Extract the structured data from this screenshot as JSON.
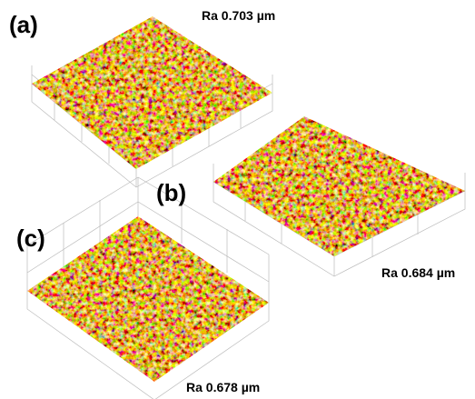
{
  "panels": [
    {
      "label": "(a)",
      "roughness": "Ra 0.703 µm"
    },
    {
      "label": "(b)",
      "roughness": "Ra 0.684 µm"
    },
    {
      "label": "(c)",
      "roughness": "Ra 0.678 µm"
    }
  ]
}
